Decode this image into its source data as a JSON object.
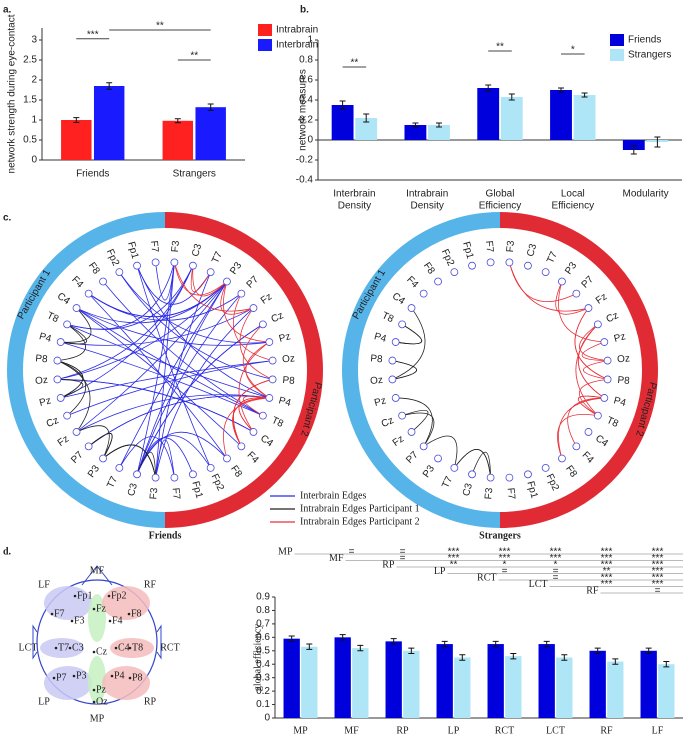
{
  "chart_data": [
    {
      "type": "bar",
      "panel": "a.",
      "ylabel": "network strength during eye-contact",
      "categories": [
        "Friends",
        "Strangers"
      ],
      "series": [
        {
          "name": "Intrabrain",
          "color": "#ff2020",
          "values": [
            1.0,
            0.98
          ],
          "errors": [
            0.06,
            0.05
          ]
        },
        {
          "name": "Interbrain",
          "color": "#1a1aff",
          "values": [
            1.85,
            1.32
          ],
          "errors": [
            0.08,
            0.08
          ]
        }
      ],
      "ylim": [
        0,
        3.3
      ],
      "yticks": [
        0,
        0.5,
        1,
        1.5,
        2,
        2.5,
        3
      ],
      "legend": "upper right",
      "annotations": [
        {
          "text": "***",
          "bars": [
            [
              0,
              0
            ],
            [
              0,
              1
            ]
          ]
        },
        {
          "text": "**",
          "bars": [
            [
              1,
              0
            ],
            [
              1,
              1
            ]
          ]
        },
        {
          "text": "**",
          "bars": [
            [
              0,
              1
            ],
            [
              1,
              1
            ]
          ]
        }
      ]
    },
    {
      "type": "bar",
      "panel": "b.",
      "ylabel": "network measures",
      "categories": [
        [
          "Interbrain",
          "Density"
        ],
        [
          "Intrabrain",
          "Density"
        ],
        [
          "Global",
          "Efficiency"
        ],
        [
          "Local",
          "Efficiency"
        ],
        [
          "Modularity"
        ]
      ],
      "series": [
        {
          "name": "Friends",
          "color": "#0000dd",
          "values": [
            0.35,
            0.15,
            0.52,
            0.5,
            -0.1
          ],
          "errors": [
            0.04,
            0.02,
            0.03,
            0.02,
            0.04
          ]
        },
        {
          "name": "Strangers",
          "color": "#aee6f7",
          "values": [
            0.22,
            0.15,
            0.43,
            0.45,
            -0.02
          ],
          "errors": [
            0.04,
            0.02,
            0.03,
            0.02,
            0.05
          ]
        }
      ],
      "ylim": [
        -0.4,
        1.0
      ],
      "yticks": [
        -0.4,
        -0.2,
        0,
        0.2,
        0.4,
        0.6,
        0.8,
        1
      ],
      "legend": "upper right",
      "annotations": [
        {
          "text": "**",
          "bars": [
            [
              0,
              0
            ],
            [
              0,
              1
            ]
          ]
        },
        {
          "text": "**",
          "bars": [
            [
              2,
              0
            ],
            [
              2,
              1
            ]
          ]
        },
        {
          "text": "*",
          "bars": [
            [
              3,
              0
            ],
            [
              3,
              1
            ]
          ]
        }
      ]
    },
    {
      "type": "bar",
      "ylabel": "global efficiency",
      "categories": [
        "MP",
        "MF",
        "RP",
        "LP",
        "RCT",
        "LCT",
        "RF",
        "LF"
      ],
      "series": [
        {
          "name": "Friends",
          "color": "#0000dd",
          "values": [
            0.59,
            0.6,
            0.57,
            0.55,
            0.55,
            0.55,
            0.5,
            0.5
          ],
          "errors": [
            0.02,
            0.02,
            0.02,
            0.02,
            0.02,
            0.02,
            0.02,
            0.02
          ]
        },
        {
          "name": "Strangers",
          "color": "#aee6f7",
          "values": [
            0.53,
            0.52,
            0.5,
            0.45,
            0.46,
            0.45,
            0.42,
            0.4
          ],
          "errors": [
            0.02,
            0.02,
            0.02,
            0.02,
            0.02,
            0.02,
            0.02,
            0.02
          ]
        }
      ],
      "ylim": [
        0,
        0.9
      ],
      "yticks": [
        0,
        0.1,
        0.2,
        0.3,
        0.4,
        0.5,
        0.6,
        0.7,
        0.8,
        0.9
      ],
      "comparisons": [
        {
          "label": "MP",
          "marks": [
            "=",
            "=",
            "***",
            "***",
            "***",
            "***",
            "***"
          ]
        },
        {
          "label": "MF",
          "marks": [
            "=",
            "***",
            "***",
            "***",
            "***",
            "***"
          ]
        },
        {
          "label": "RP",
          "marks": [
            "**",
            "*",
            "*",
            "***",
            "***"
          ]
        },
        {
          "label": "LP",
          "marks": [
            "=",
            "=",
            "**",
            "***"
          ]
        },
        {
          "label": "RCT",
          "marks": [
            "=",
            "***",
            "***"
          ]
        },
        {
          "label": "LCT",
          "marks": [
            "***",
            "***"
          ]
        },
        {
          "label": "RF",
          "marks": [
            "="
          ]
        }
      ]
    }
  ],
  "connectivity": {
    "panel": "c.",
    "participants": [
      "Participant 1",
      "Participant 2"
    ],
    "ring_colors": [
      "#56b4e9",
      "#e02b35"
    ],
    "p1": [
      "F7",
      "Fp1",
      "Fp2",
      "F8",
      "F4",
      "C4",
      "T8",
      "P4",
      "P8",
      "Oz",
      "Pz",
      "Cz",
      "Fz",
      "P7",
      "P3",
      "T7",
      "C3",
      "F3"
    ],
    "p2": [
      "F3",
      "C3",
      "T7",
      "P3",
      "P7",
      "Fz",
      "Cz",
      "Pz",
      "Oz",
      "P8",
      "P4",
      "T8",
      "C4",
      "F4",
      "F8",
      "Fp2",
      "Fp1",
      "F7"
    ],
    "edge_legend": [
      "Interbrain Edges",
      "Intrabrain Edges Participant 1",
      "Intrabrain Edges Participant 2"
    ],
    "edge_colors": [
      "#2a2ae8",
      "#222222",
      "#e8313a"
    ],
    "groups": [
      "Friends",
      "Strangers"
    ]
  },
  "head_diagram": {
    "panel": "d.",
    "regions": [
      {
        "label": "LF",
        "color": "#c9c9f4"
      },
      {
        "label": "MF",
        "color": "#c5f0c0"
      },
      {
        "label": "RF",
        "color": "#f5bcbc"
      },
      {
        "label": "LCT",
        "color": "#c9c9f4"
      },
      {
        "label": "RCT",
        "color": "#f5bcbc"
      },
      {
        "label": "LP",
        "color": "#c9c9f4"
      },
      {
        "label": "MP",
        "color": "#c5f0c0"
      },
      {
        "label": "RP",
        "color": "#f5bcbc"
      }
    ],
    "electrodes": [
      "Fp1",
      "Fp2",
      "F7",
      "F3",
      "Fz",
      "F4",
      "F8",
      "T7",
      "C3",
      "Cz",
      "C4",
      "T8",
      "P7",
      "P3",
      "Pz",
      "P4",
      "P8",
      "Oz"
    ]
  }
}
